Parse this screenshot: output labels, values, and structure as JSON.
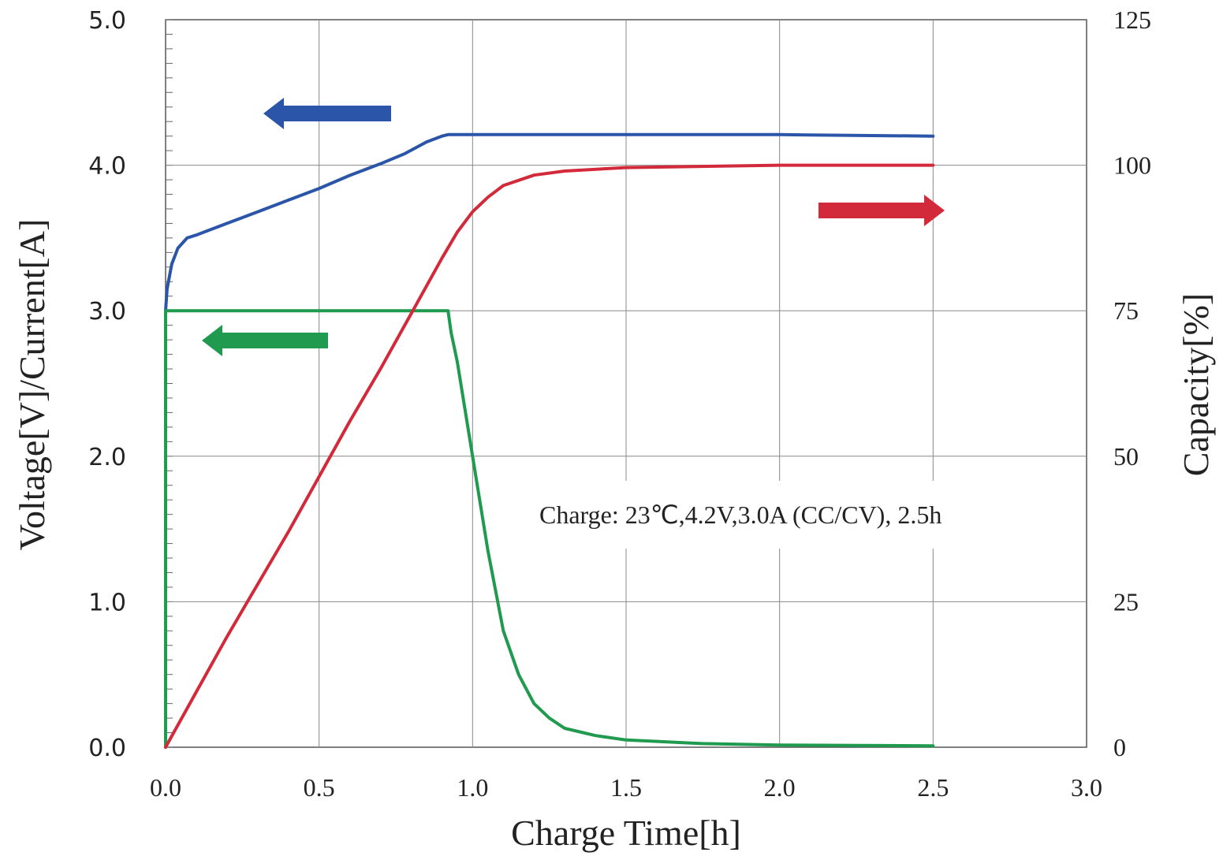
{
  "chart_data": {
    "type": "line",
    "title": "",
    "xlabel": "Charge Time[h]",
    "ylabel_left": "Voltage[V]/Current[A]",
    "ylabel_right": "Capacity[%]",
    "xlim": [
      0,
      3.0
    ],
    "ylim_left": [
      0,
      5.0
    ],
    "ylim_right": [
      0,
      125
    ],
    "x_ticks": [
      "0.0",
      "0.5",
      "1.0",
      "1.5",
      "2.0",
      "2.5",
      "3.0"
    ],
    "y_left_ticks": [
      "0.0",
      "1.0",
      "2.0",
      "3.0",
      "4.0",
      "5.0"
    ],
    "y_right_ticks": [
      "0",
      "25",
      "50",
      "75",
      "100",
      "125"
    ],
    "grid": true,
    "annotation": "Charge: 23℃,4.2V,3.0A  (CC/CV), 2.5h",
    "series": [
      {
        "axis": "left",
        "color": "#2a55a8",
        "arrow": "left",
        "x": [
          0.0,
          0.005,
          0.02,
          0.04,
          0.07,
          0.1,
          0.2,
          0.3,
          0.4,
          0.5,
          0.6,
          0.7,
          0.78,
          0.85,
          0.9,
          0.92,
          1.0,
          1.5,
          2.0,
          2.5
        ],
        "y": [
          3.0,
          3.15,
          3.32,
          3.43,
          3.5,
          3.52,
          3.6,
          3.68,
          3.76,
          3.84,
          3.93,
          4.01,
          4.08,
          4.16,
          4.2,
          4.21,
          4.21,
          4.21,
          4.21,
          4.2
        ]
      },
      {
        "axis": "left",
        "color": "#1f9a4e",
        "arrow": "left",
        "x": [
          0.0,
          0.0,
          0.1,
          0.3,
          0.5,
          0.7,
          0.9,
          0.92,
          0.93,
          0.95,
          1.0,
          1.05,
          1.1,
          1.15,
          1.2,
          1.25,
          1.3,
          1.4,
          1.5,
          1.75,
          2.0,
          2.5
        ],
        "y": [
          0.0,
          3.0,
          3.0,
          3.0,
          3.0,
          3.0,
          3.0,
          3.0,
          2.85,
          2.65,
          2.0,
          1.35,
          0.8,
          0.5,
          0.3,
          0.2,
          0.13,
          0.08,
          0.05,
          0.025,
          0.015,
          0.01
        ]
      },
      {
        "axis": "right",
        "color": "#d22a3a",
        "arrow": "right",
        "x": [
          0.0,
          0.1,
          0.2,
          0.3,
          0.4,
          0.5,
          0.6,
          0.7,
          0.8,
          0.9,
          0.95,
          1.0,
          1.05,
          1.1,
          1.2,
          1.3,
          1.5,
          2.0,
          2.5
        ],
        "y": [
          0.0,
          9.5,
          19.0,
          28.0,
          37.0,
          46.5,
          56.0,
          65.0,
          74.5,
          84.0,
          88.5,
          92.0,
          94.5,
          96.5,
          98.3,
          99.0,
          99.6,
          100.0,
          100.0
        ]
      }
    ]
  }
}
